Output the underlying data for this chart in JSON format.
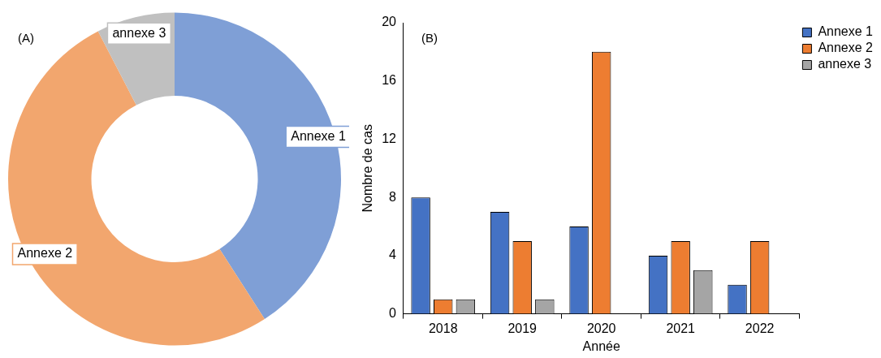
{
  "chart_data": [
    {
      "type": "donut",
      "title": "(A)",
      "categories": [
        "Annexe 1",
        "Annexe 2",
        "annexe 3"
      ],
      "values": [
        40.9,
        51.5,
        7.6
      ],
      "colors": [
        "#7f9fd6",
        "#f2a66e",
        "#c0c0c0"
      ],
      "legend": false
    },
    {
      "type": "bar",
      "title": "(B)",
      "xlabel": "Année",
      "ylabel": "Nombre de cas",
      "categories": [
        "2018",
        "2019",
        "2020",
        "2021",
        "2022"
      ],
      "series": [
        {
          "name": "Annexe 1",
          "color": "#4472c4",
          "values": [
            8,
            7,
            6,
            4,
            2
          ]
        },
        {
          "name": "Annexe 2",
          "color": "#ed7d31",
          "values": [
            1,
            5,
            18,
            5,
            5
          ]
        },
        {
          "name": "annexe 3",
          "color": "#a5a5a5",
          "values": [
            1,
            1,
            0,
            3,
            0
          ]
        }
      ],
      "ylim": [
        0,
        20
      ],
      "yticks": [
        0,
        4,
        8,
        12,
        16,
        20
      ],
      "grid": false,
      "legend": "top right"
    }
  ]
}
